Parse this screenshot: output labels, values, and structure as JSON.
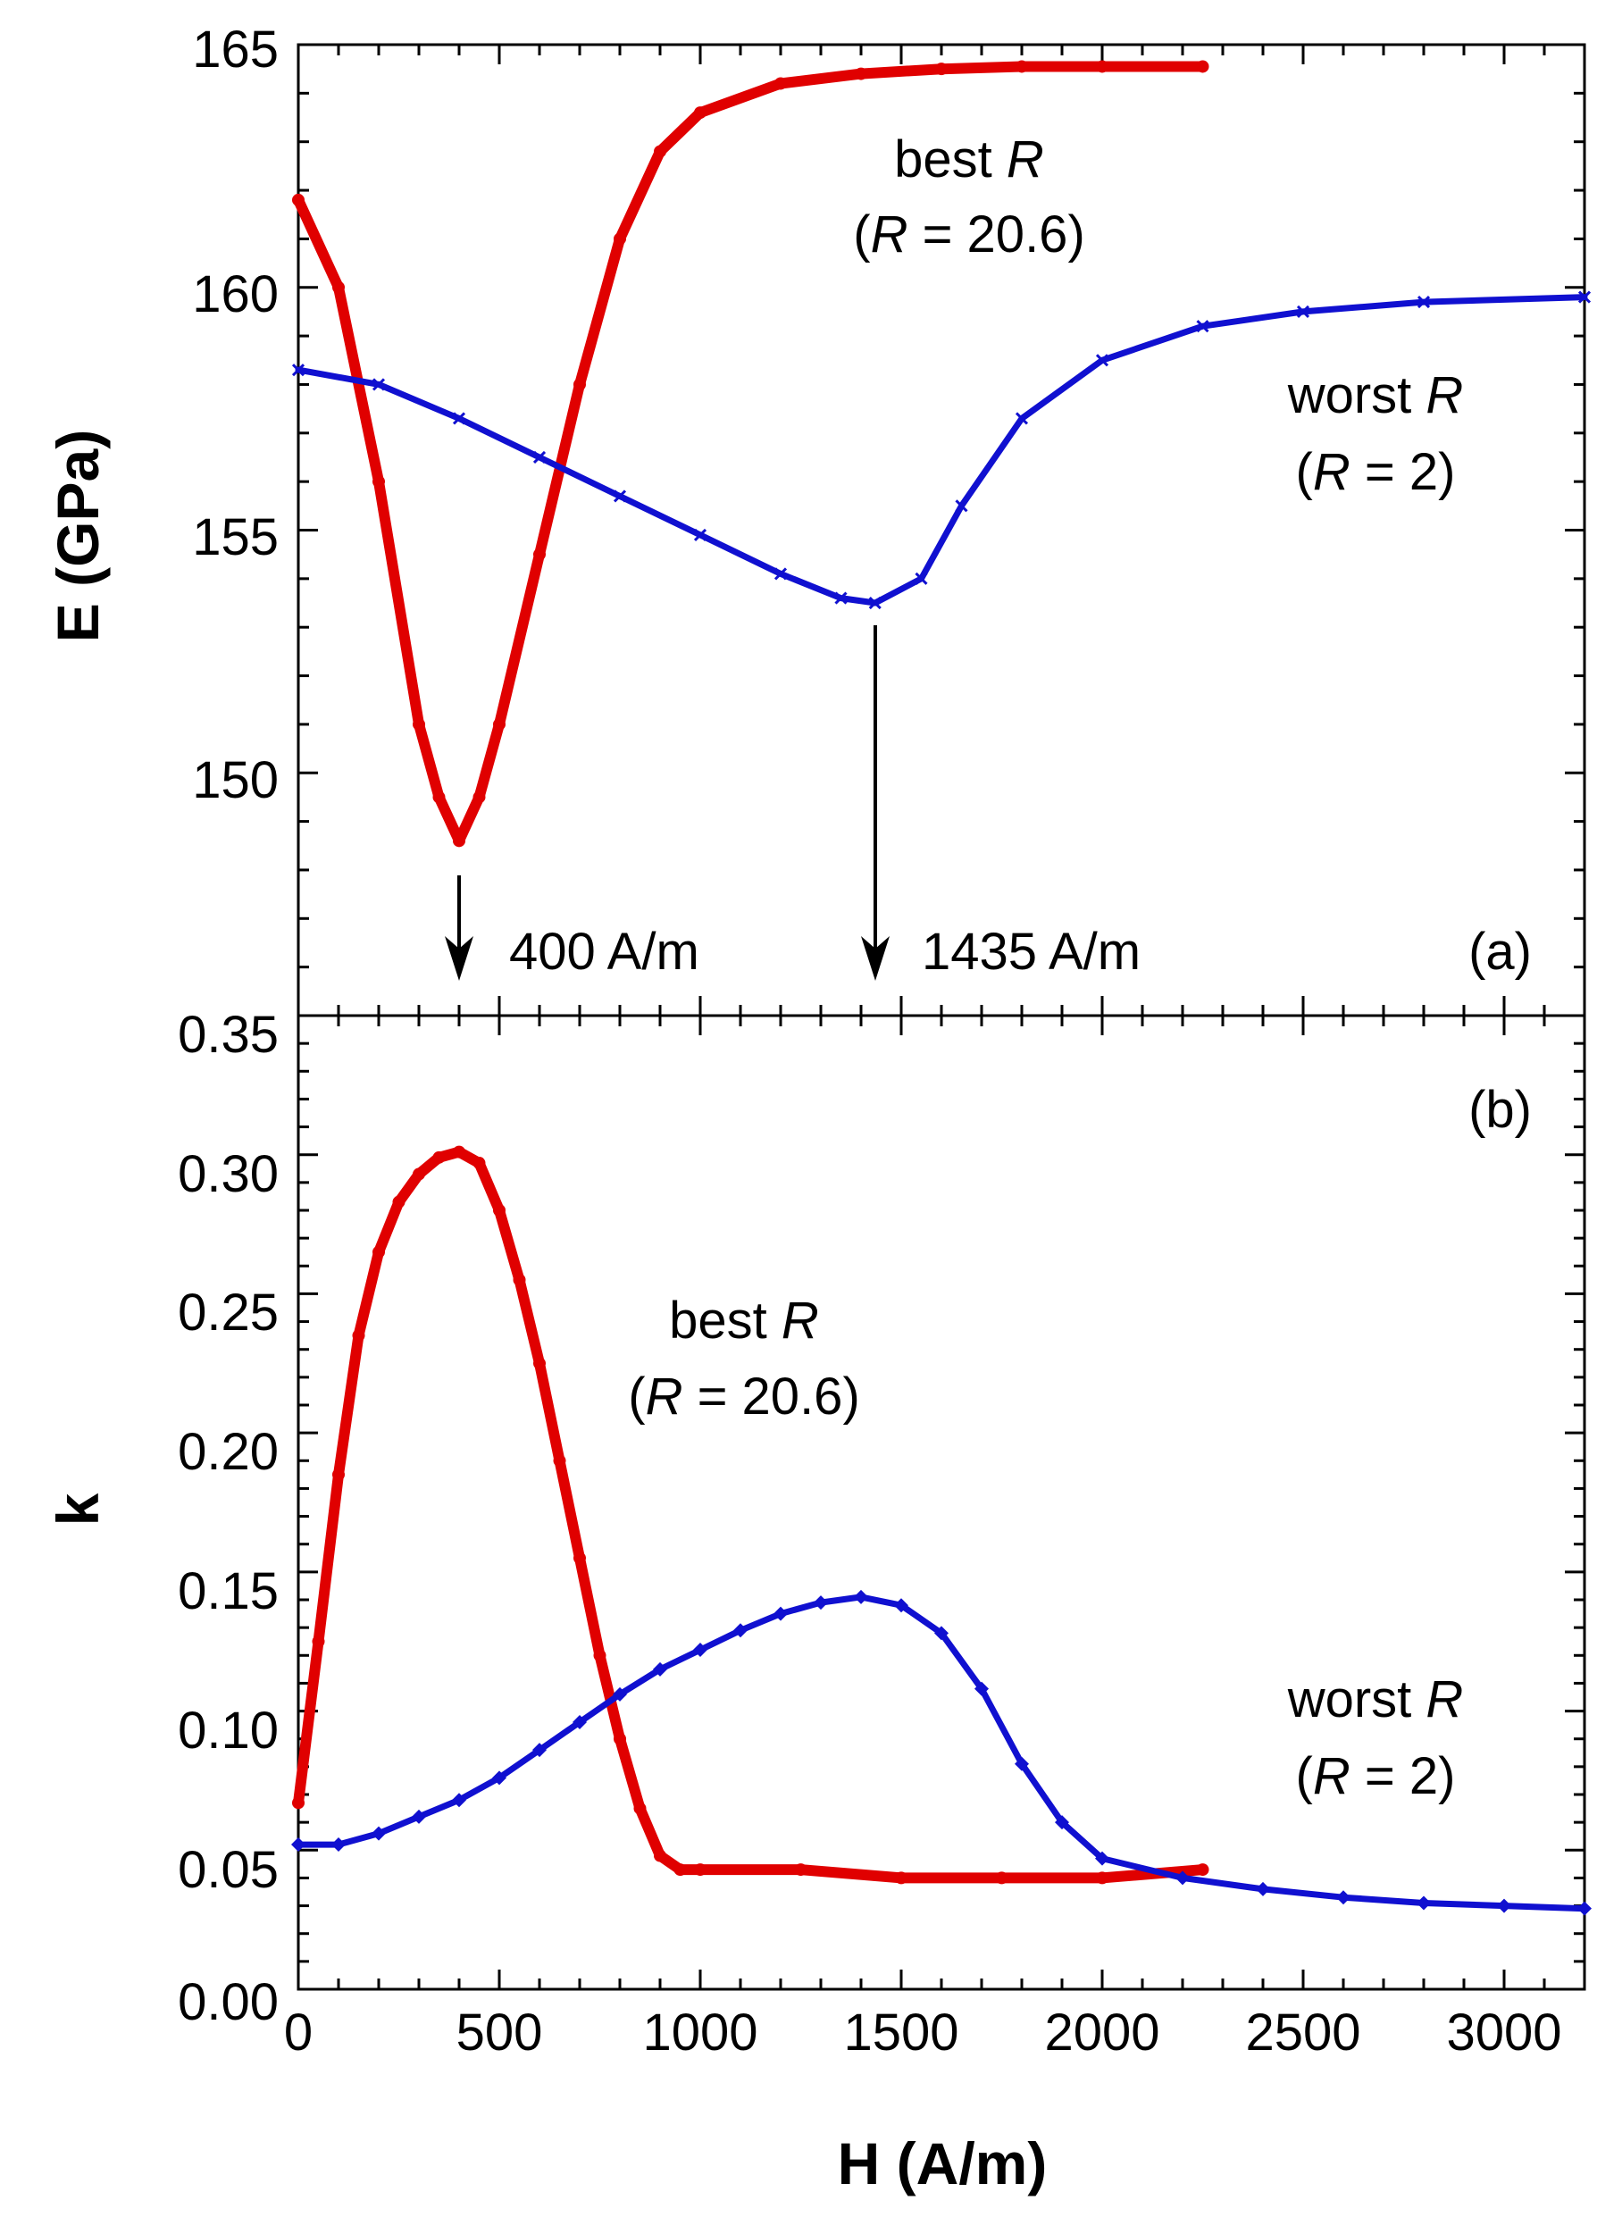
{
  "chart_data": [
    {
      "panel": "(a)",
      "type": "scatter",
      "ylabel": "E (GPa)",
      "xlim": [
        0,
        3200
      ],
      "ylim": [
        145,
        165
      ],
      "yticks": [
        150,
        155,
        160,
        165
      ],
      "yticklabels": [
        "150",
        "155",
        "160",
        "165"
      ],
      "series": [
        {
          "name": "best R (R = 20.6)",
          "color": "#e00000",
          "marker": "circle",
          "x": [
            0,
            100,
            200,
            300,
            350,
            400,
            450,
            500,
            600,
            700,
            800,
            900,
            1000,
            1200,
            1400,
            1600,
            1800,
            2000,
            2250
          ],
          "y": [
            161.8,
            160.0,
            156.0,
            151.0,
            149.5,
            148.6,
            149.5,
            151.0,
            154.5,
            158.0,
            161.0,
            162.8,
            163.6,
            164.2,
            164.4,
            164.5,
            164.55,
            164.55,
            164.55
          ]
        },
        {
          "name": "worst R (R = 2)",
          "color": "#1010d0",
          "marker": "cross",
          "x": [
            0,
            200,
            400,
            600,
            800,
            1000,
            1200,
            1350,
            1435,
            1550,
            1650,
            1800,
            2000,
            2250,
            2500,
            2800,
            3200
          ],
          "y": [
            158.3,
            158.0,
            157.3,
            156.5,
            155.7,
            154.9,
            154.1,
            153.6,
            153.5,
            154.0,
            155.5,
            157.3,
            158.5,
            159.2,
            159.5,
            159.7,
            159.8
          ]
        }
      ],
      "annotations": [
        {
          "id": "best",
          "line1": "best ",
          "italic": "R",
          "line2_prefix": "(",
          "line2_suffix": " = 20.6)"
        },
        {
          "id": "worst",
          "line1": "worst ",
          "italic": "R",
          "line2_prefix": "(",
          "line2_suffix": " = 2)"
        },
        {
          "id": "arrow1",
          "text": "400 A/m",
          "x": 400
        },
        {
          "id": "arrow2",
          "text": "1435 A/m",
          "x": 1435
        }
      ]
    },
    {
      "panel": "(b)",
      "type": "scatter",
      "xlabel": "H (A/m)",
      "ylabel": "k",
      "xlim": [
        0,
        3200
      ],
      "ylim": [
        0,
        0.35
      ],
      "xticks": [
        0,
        500,
        1000,
        1500,
        2000,
        2500,
        3000
      ],
      "xticklabels": [
        "0",
        "500",
        "1000",
        "1500",
        "2000",
        "2500",
        "3000"
      ],
      "yticks": [
        0,
        0.05,
        0.1,
        0.15,
        0.2,
        0.25,
        0.3,
        0.35
      ],
      "yticklabels": [
        "0.00",
        "0.05",
        "0.10",
        "0.15",
        "0.20",
        "0.25",
        "0.30",
        "0.35"
      ],
      "series": [
        {
          "name": "best R (R = 20.6)",
          "color": "#e00000",
          "marker": "circle",
          "x": [
            0,
            50,
            100,
            150,
            200,
            250,
            300,
            350,
            400,
            450,
            500,
            550,
            600,
            650,
            700,
            750,
            800,
            850,
            900,
            950,
            1000,
            1250,
            1500,
            1750,
            2000,
            2250
          ],
          "y": [
            0.067,
            0.125,
            0.185,
            0.235,
            0.265,
            0.283,
            0.293,
            0.299,
            0.301,
            0.297,
            0.28,
            0.255,
            0.225,
            0.19,
            0.155,
            0.12,
            0.09,
            0.065,
            0.048,
            0.043,
            0.043,
            0.043,
            0.04,
            0.04,
            0.04,
            0.043
          ]
        },
        {
          "name": "worst R (R = 2)",
          "color": "#1010d0",
          "marker": "diamond",
          "x": [
            0,
            100,
            200,
            300,
            400,
            500,
            600,
            700,
            800,
            900,
            1000,
            1100,
            1200,
            1300,
            1400,
            1500,
            1600,
            1700,
            1800,
            1900,
            2000,
            2200,
            2400,
            2600,
            2800,
            3000,
            3200
          ],
          "y": [
            0.052,
            0.052,
            0.056,
            0.062,
            0.068,
            0.076,
            0.086,
            0.096,
            0.106,
            0.115,
            0.122,
            0.129,
            0.135,
            0.139,
            0.141,
            0.138,
            0.128,
            0.108,
            0.081,
            0.06,
            0.047,
            0.04,
            0.036,
            0.033,
            0.031,
            0.03,
            0.029
          ]
        }
      ],
      "annotations": [
        {
          "id": "best",
          "line1": "best ",
          "italic": "R",
          "line2_prefix": "(",
          "line2_suffix": " = 20.6)"
        },
        {
          "id": "worst",
          "line1": "worst ",
          "italic": "R",
          "line2_prefix": "(",
          "line2_suffix": " = 2)"
        }
      ]
    }
  ]
}
